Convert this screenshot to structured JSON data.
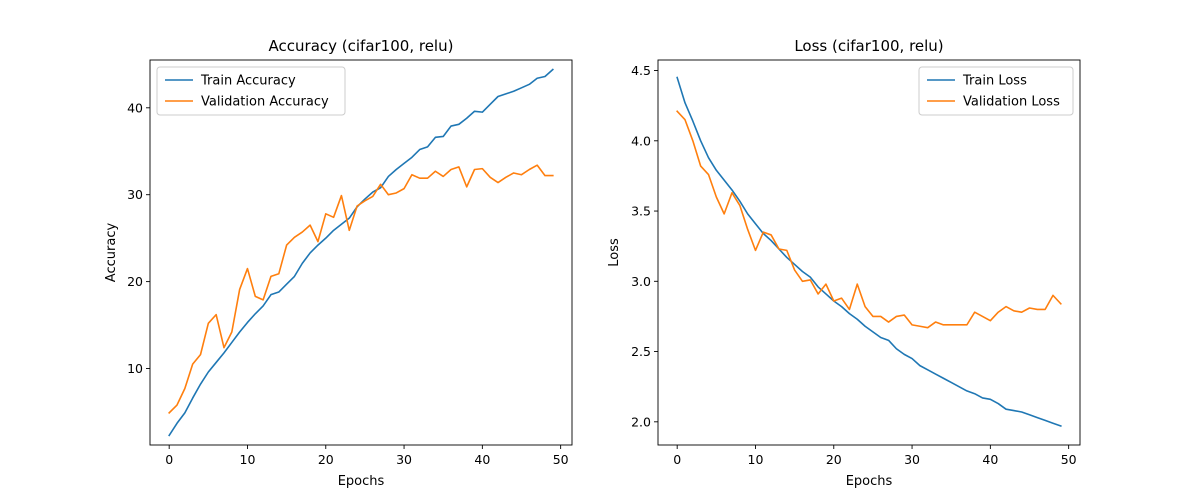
{
  "colors": {
    "train": "#1f77b4",
    "validation": "#ff7f0e"
  },
  "chart_data": [
    {
      "type": "line",
      "title": "Accuracy (cifar100, relu)",
      "xlabel": "Epochs",
      "ylabel": "Accuracy",
      "xlim": [
        -2.45,
        51.45
      ],
      "ylim": [
        1.2,
        45.5
      ],
      "xticks": [
        0,
        10,
        20,
        30,
        40,
        50
      ],
      "yticks": [
        10,
        20,
        30,
        40
      ],
      "legend_position": "top-left",
      "x": [
        0,
        1,
        2,
        3,
        4,
        5,
        6,
        7,
        8,
        9,
        10,
        11,
        12,
        13,
        14,
        15,
        16,
        17,
        18,
        19,
        20,
        21,
        22,
        23,
        24,
        25,
        26,
        27,
        28,
        29,
        30,
        31,
        32,
        33,
        34,
        35,
        36,
        37,
        38,
        39,
        40,
        41,
        42,
        43,
        44,
        45,
        46,
        47,
        48,
        49
      ],
      "series": [
        {
          "name": "Train Accuracy",
          "color_key": "train",
          "values": [
            2.3,
            3.7,
            4.9,
            6.6,
            8.2,
            9.6,
            10.7,
            11.8,
            13.0,
            14.2,
            15.3,
            16.3,
            17.2,
            18.5,
            18.8,
            19.7,
            20.6,
            22.1,
            23.3,
            24.2,
            25.0,
            25.9,
            26.6,
            27.3,
            28.6,
            29.5,
            30.3,
            30.8,
            32.1,
            32.9,
            33.6,
            34.3,
            35.2,
            35.5,
            36.6,
            36.7,
            37.9,
            38.1,
            38.8,
            39.6,
            39.5,
            40.4,
            41.3,
            41.6,
            41.9,
            42.3,
            42.7,
            43.4,
            43.6,
            44.4
          ]
        },
        {
          "name": "Validation Accuracy",
          "color_key": "validation",
          "values": [
            4.9,
            5.8,
            7.7,
            10.5,
            11.6,
            15.2,
            16.2,
            12.4,
            14.2,
            19.1,
            21.5,
            18.3,
            17.9,
            20.6,
            20.9,
            24.2,
            25.1,
            25.7,
            26.5,
            24.6,
            27.8,
            27.4,
            29.9,
            25.9,
            28.7,
            29.3,
            29.8,
            31.2,
            30.0,
            30.2,
            30.7,
            32.3,
            31.9,
            31.9,
            32.7,
            32.1,
            32.9,
            33.2,
            30.9,
            32.9,
            33.0,
            32.0,
            31.4,
            32.0,
            32.5,
            32.3,
            32.9,
            33.4,
            32.2,
            32.2
          ]
        }
      ]
    },
    {
      "type": "line",
      "title": "Loss (cifar100, relu)",
      "xlabel": "Epochs",
      "ylabel": "Loss",
      "xlim": [
        -2.45,
        51.45
      ],
      "ylim": [
        1.835,
        4.575
      ],
      "xticks": [
        0,
        10,
        20,
        30,
        40,
        50
      ],
      "yticks": [
        2.0,
        2.5,
        3.0,
        3.5,
        4.0,
        4.5
      ],
      "legend_position": "top-right",
      "x": [
        0,
        1,
        2,
        3,
        4,
        5,
        6,
        7,
        8,
        9,
        10,
        11,
        12,
        13,
        14,
        15,
        16,
        17,
        18,
        19,
        20,
        21,
        22,
        23,
        24,
        25,
        26,
        27,
        28,
        29,
        30,
        31,
        32,
        33,
        34,
        35,
        36,
        37,
        38,
        39,
        40,
        41,
        42,
        43,
        44,
        45,
        46,
        47,
        48,
        49
      ],
      "series": [
        {
          "name": "Train Loss",
          "color_key": "train",
          "values": [
            4.45,
            4.27,
            4.14,
            4.0,
            3.88,
            3.79,
            3.72,
            3.65,
            3.57,
            3.48,
            3.41,
            3.34,
            3.29,
            3.23,
            3.17,
            3.12,
            3.07,
            3.03,
            2.96,
            2.91,
            2.86,
            2.82,
            2.77,
            2.73,
            2.68,
            2.64,
            2.6,
            2.58,
            2.52,
            2.48,
            2.45,
            2.4,
            2.37,
            2.34,
            2.31,
            2.28,
            2.25,
            2.22,
            2.2,
            2.17,
            2.16,
            2.13,
            2.09,
            2.08,
            2.07,
            2.05,
            2.03,
            2.01,
            1.99,
            1.97
          ]
        },
        {
          "name": "Validation Loss",
          "color_key": "validation",
          "values": [
            4.21,
            4.15,
            4.0,
            3.82,
            3.76,
            3.6,
            3.48,
            3.63,
            3.54,
            3.37,
            3.22,
            3.35,
            3.33,
            3.23,
            3.22,
            3.08,
            3.0,
            3.01,
            2.91,
            2.98,
            2.86,
            2.88,
            2.8,
            2.98,
            2.82,
            2.75,
            2.75,
            2.71,
            2.75,
            2.76,
            2.69,
            2.68,
            2.67,
            2.71,
            2.69,
            2.69,
            2.69,
            2.69,
            2.78,
            2.75,
            2.72,
            2.78,
            2.82,
            2.79,
            2.78,
            2.81,
            2.8,
            2.8,
            2.9,
            2.84
          ]
        }
      ]
    }
  ]
}
